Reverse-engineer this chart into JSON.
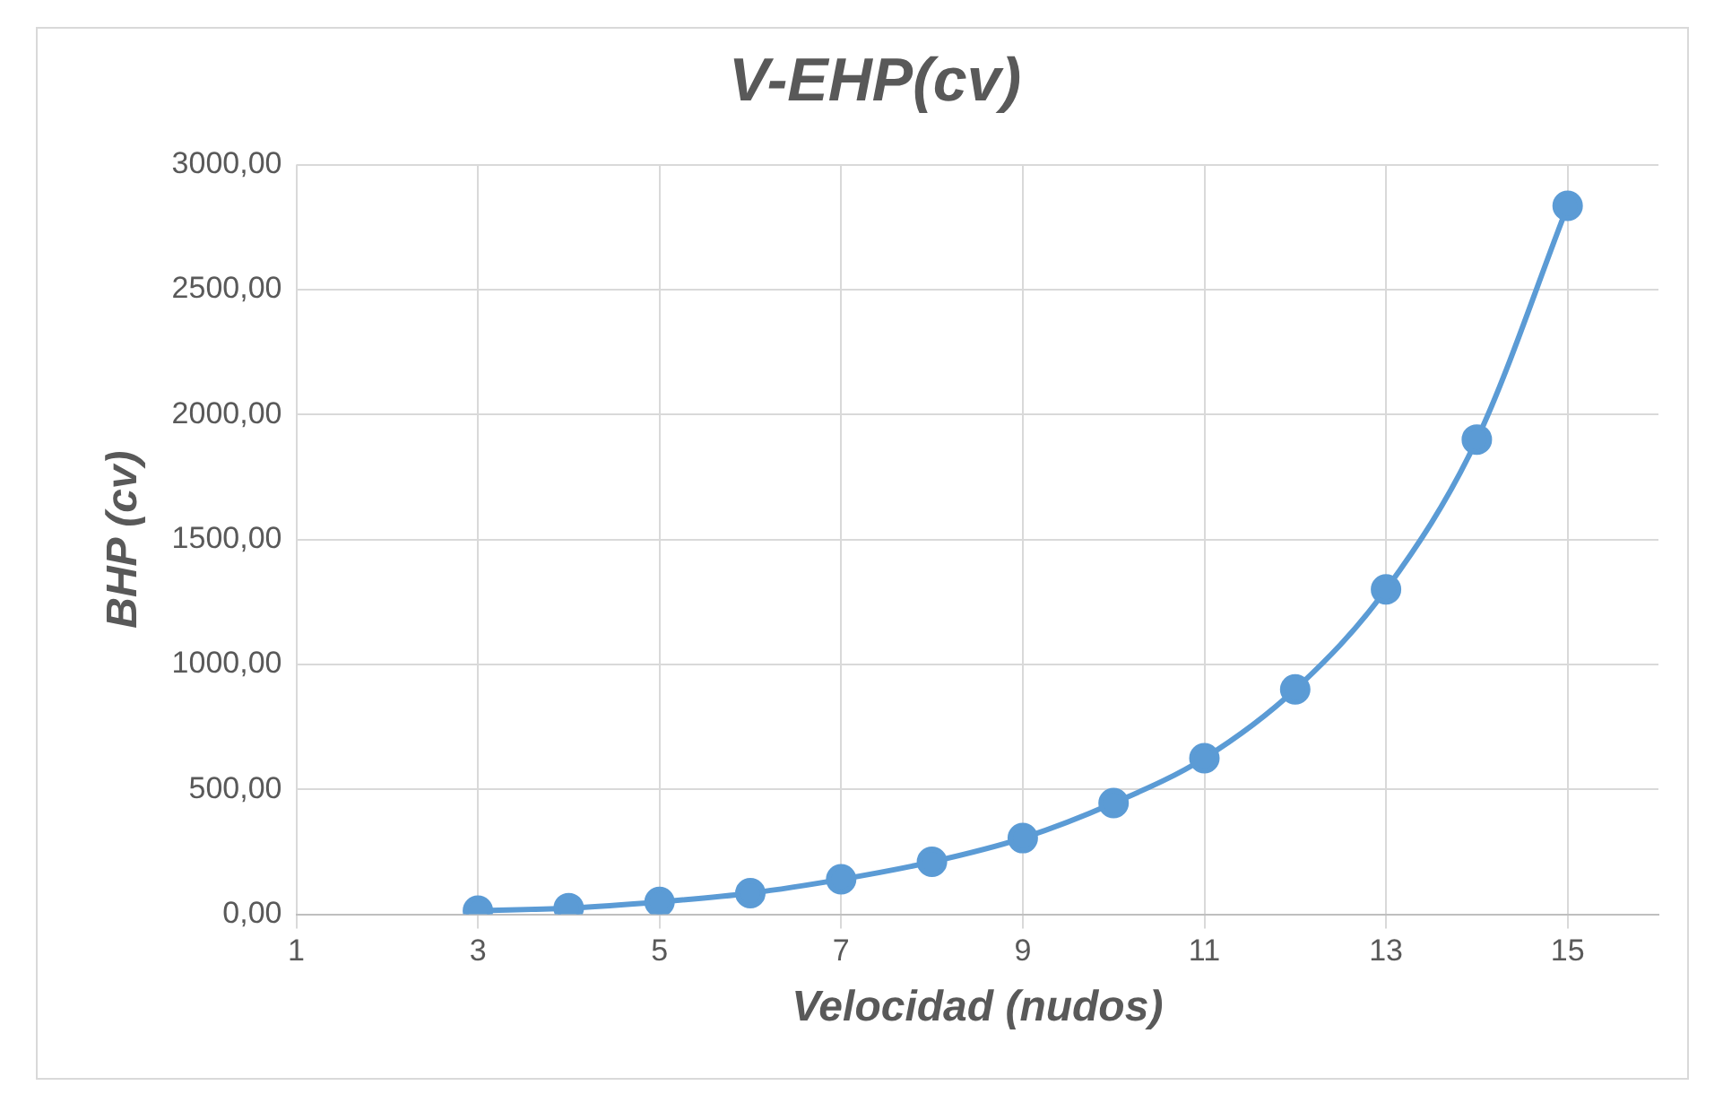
{
  "chart_data": {
    "type": "line",
    "title": "V-EHP(cv)",
    "xlabel": "Velocidad (nudos)",
    "ylabel": "BHP (cv)",
    "x": [
      3,
      4,
      5,
      6,
      7,
      8,
      9,
      10,
      11,
      12,
      13,
      14,
      15
    ],
    "series": [
      {
        "color": "#5b9bd5",
        "values": [
          15,
          25,
          50,
          85,
          140,
          210,
          305,
          445,
          625,
          900,
          1300,
          1900,
          2835
        ]
      }
    ],
    "xlim": [
      1,
      16
    ],
    "xticks": [
      1,
      3,
      5,
      7,
      9,
      11,
      13,
      15
    ],
    "ylim": [
      0,
      3000
    ],
    "yticks": [
      {
        "value": 0,
        "label": "0,00"
      },
      {
        "value": 500,
        "label": "500,00"
      },
      {
        "value": 1000,
        "label": "1000,00"
      },
      {
        "value": 1500,
        "label": "1500,00"
      },
      {
        "value": 2000,
        "label": "2000,00"
      },
      {
        "value": 2500,
        "label": "2500,00"
      },
      {
        "value": 3000,
        "label": "3000,00"
      }
    ],
    "grid": true,
    "legend": false,
    "marker": "circle",
    "line_style": "solid"
  }
}
